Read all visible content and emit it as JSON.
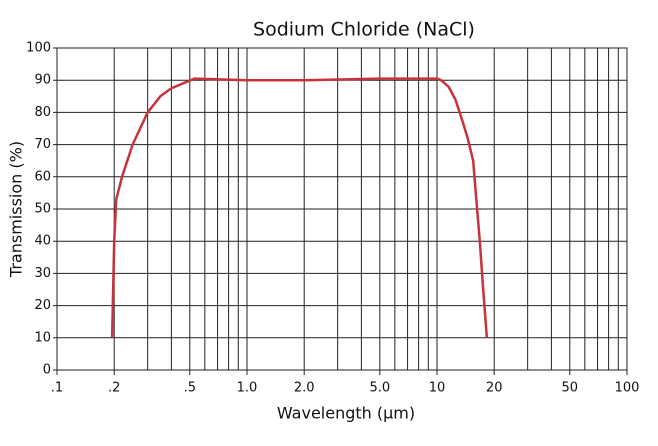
{
  "chart_data": {
    "type": "line",
    "title": "Sodium Chloride (NaCl)",
    "x_label": "Wavelength (µm)",
    "y_label": "Transmission (%)",
    "xlog": true,
    "grid": true,
    "xlim": [
      0.1,
      100
    ],
    "ylim": [
      0,
      100
    ],
    "xticks": [
      {
        "value": 0.1,
        "label": ".1"
      },
      {
        "value": 0.2,
        "label": ".2"
      },
      {
        "value": 0.5,
        "label": ".5"
      },
      {
        "value": 1,
        "label": "1.0"
      },
      {
        "value": 2,
        "label": "2.0"
      },
      {
        "value": 5,
        "label": "5.0"
      },
      10,
      20,
      50,
      100
    ],
    "xgrid": [
      0.2,
      0.3,
      0.4,
      0.5,
      0.6,
      0.7,
      0.8,
      0.9,
      1,
      2,
      3,
      4,
      5,
      6,
      7,
      8,
      9,
      10,
      20,
      30,
      40,
      50,
      60,
      70,
      80,
      90
    ],
    "yticks": [
      0,
      10,
      20,
      30,
      40,
      50,
      60,
      70,
      80,
      90,
      100
    ],
    "series": [
      {
        "color": "#c8323c",
        "x": [
          0.195,
          0.2,
          0.205,
          0.22,
          0.25,
          0.3,
          0.35,
          0.4,
          0.53,
          1,
          2,
          5,
          10,
          10.5,
          11.5,
          12.5,
          13.5,
          14.5,
          15.5,
          16,
          16.8,
          17.5,
          18.3
        ],
        "values": [
          10,
          40,
          53,
          60,
          70,
          80,
          85,
          87.5,
          90.5,
          90,
          90,
          90.5,
          90.5,
          90,
          88,
          84,
          78,
          72,
          65,
          55,
          40,
          25,
          10
        ]
      }
    ]
  }
}
